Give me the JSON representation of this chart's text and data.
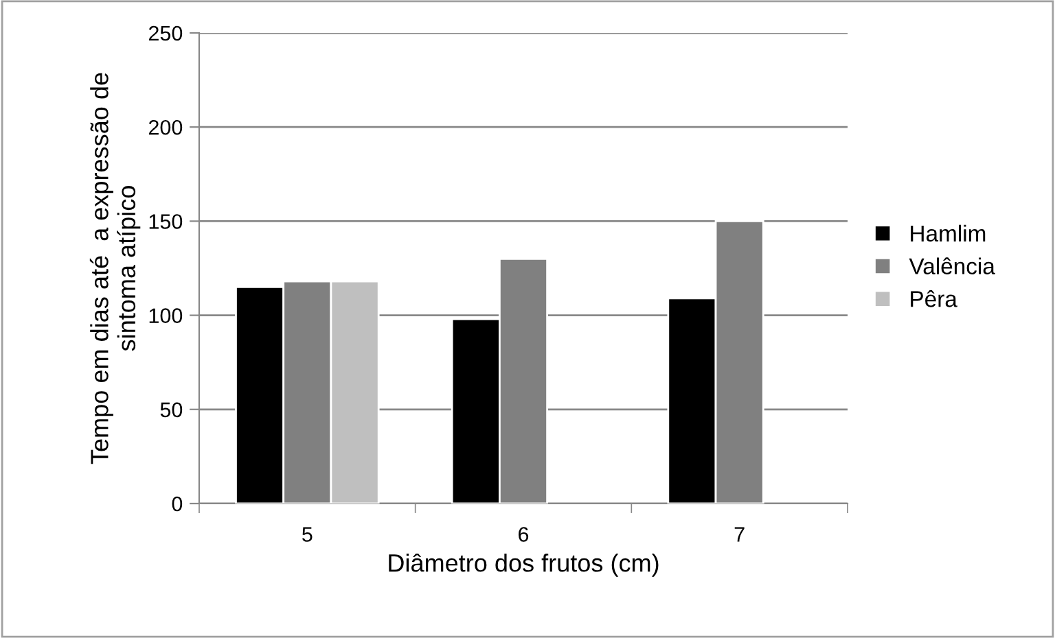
{
  "chart_data": {
    "type": "bar",
    "xlabel": "Diâmetro dos frutos (cm)",
    "ylabel": "Tempo em dias até  a expressão de\nsintoma atípico",
    "categories": [
      "5",
      "6",
      "7"
    ],
    "series": [
      {
        "name": "Hamlim",
        "color": "#000000",
        "values": [
          115,
          98,
          109
        ]
      },
      {
        "name": "Valência",
        "color": "#808080",
        "values": [
          118,
          130,
          150
        ]
      },
      {
        "name": "Pêra",
        "color": "#bfbfbf",
        "values": [
          118,
          null,
          null
        ]
      }
    ],
    "ylim": [
      0,
      250
    ],
    "yticks": [
      0,
      50,
      100,
      150,
      200,
      250
    ],
    "grid": "y",
    "legend": "right"
  }
}
